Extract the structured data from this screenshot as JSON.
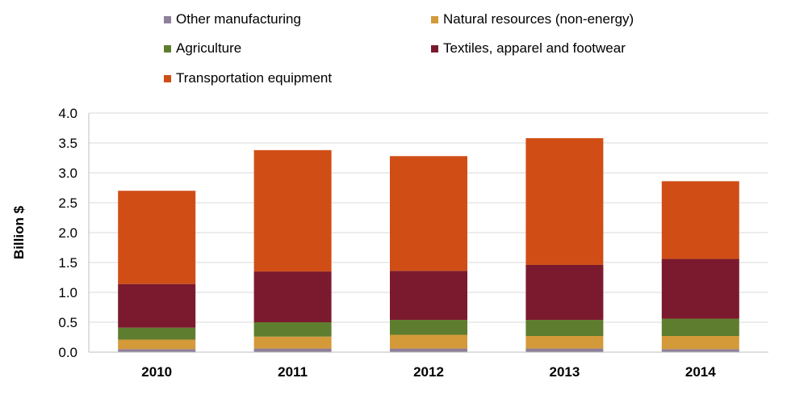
{
  "chart_data": {
    "type": "bar",
    "stacked": true,
    "title": "",
    "xlabel": "",
    "ylabel": "Billion $",
    "ylim": [
      0,
      4.0
    ],
    "yticks": [
      "0.0",
      "0.5",
      "1.0",
      "1.5",
      "2.0",
      "2.5",
      "3.0",
      "3.5",
      "4.0"
    ],
    "grid": true,
    "legend_position": "top",
    "categories": [
      "2010",
      "2011",
      "2012",
      "2013",
      "2014"
    ],
    "series": [
      {
        "name": "Other manufacturing",
        "color": "#8e7f9a",
        "values": [
          0.05,
          0.06,
          0.06,
          0.06,
          0.05
        ]
      },
      {
        "name": "Natural resources (non-energy)",
        "color": "#d49a3a",
        "values": [
          0.16,
          0.2,
          0.23,
          0.21,
          0.22
        ]
      },
      {
        "name": "Agriculture",
        "color": "#5e7d2e",
        "values": [
          0.2,
          0.24,
          0.25,
          0.27,
          0.29
        ]
      },
      {
        "name": "Textiles, apparel and footwear",
        "color": "#7b1a2e",
        "values": [
          0.73,
          0.85,
          0.82,
          0.92,
          1.0
        ]
      },
      {
        "name": "Transportation equipment",
        "color": "#d04e16",
        "values": [
          1.56,
          2.03,
          1.92,
          2.12,
          1.3
        ]
      }
    ]
  }
}
